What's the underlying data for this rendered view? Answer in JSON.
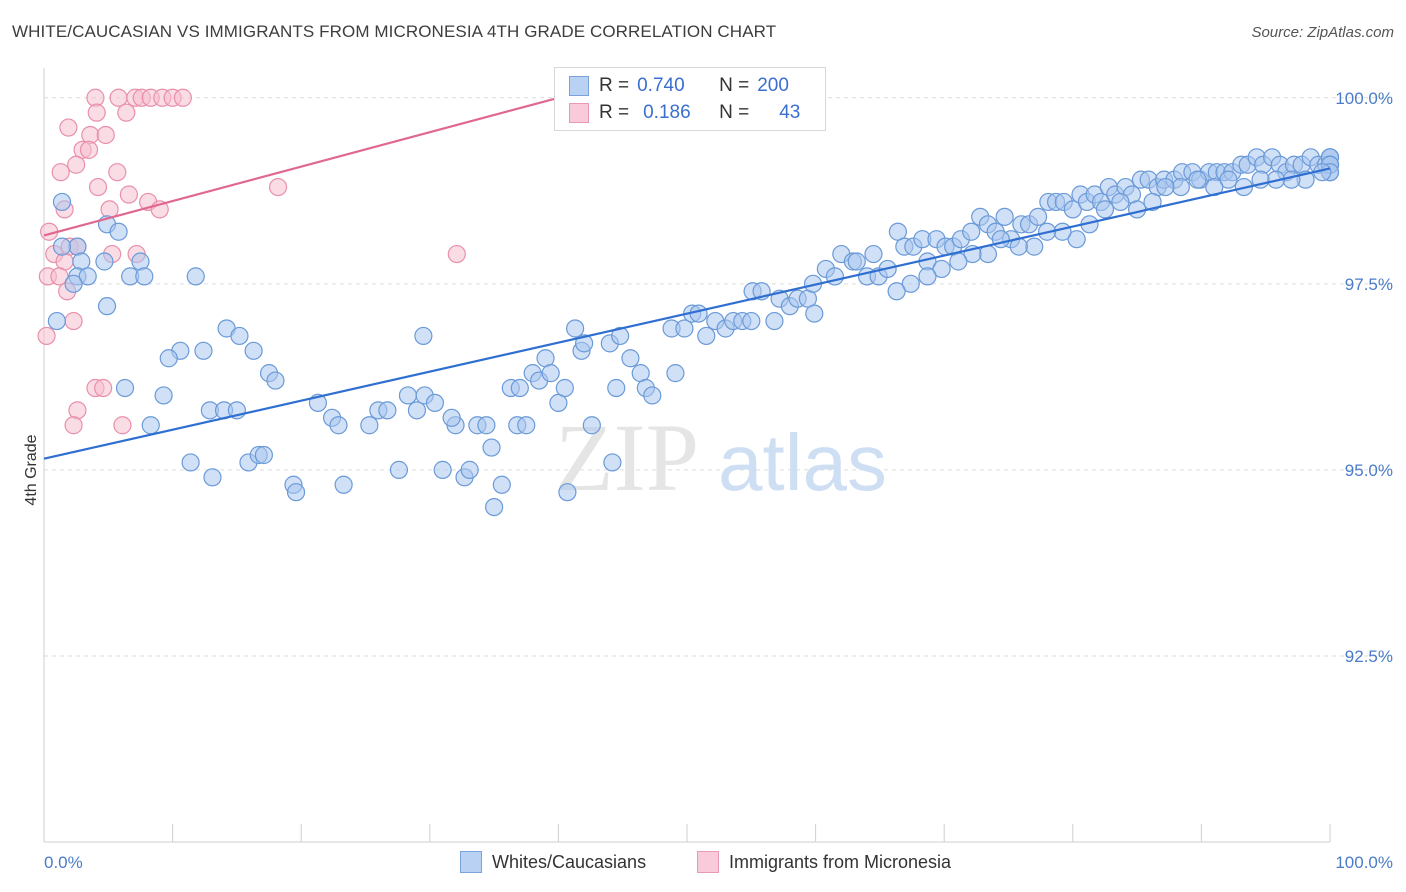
{
  "title": "WHITE/CAUCASIAN VS IMMIGRANTS FROM MICRONESIA 4TH GRADE CORRELATION CHART",
  "source": "Source: ZipAtlas.com",
  "watermark": {
    "zip": "ZIP",
    "atlas": "atlas"
  },
  "colors": {
    "blue": "#a9c7ef",
    "blue_stroke": "#6a9ad8",
    "blue_line": "#2f6fd1",
    "pink": "#f6bfd0",
    "pink_stroke": "#e98fab",
    "pink_line": "#e0678f",
    "grid": "#dcdcdc",
    "axis_text": "#4a7cc7"
  },
  "legend": {
    "rows": [
      {
        "r_label": "R =",
        "r_value": "0.740",
        "n_label": "N =",
        "n_value": "200"
      },
      {
        "r_label": "R =",
        "r_value": "0.186",
        "n_label": "N =",
        "n_value": "43"
      }
    ]
  },
  "bottom_legend": [
    "Whites/Caucasians",
    "Immigrants from Micronesia"
  ],
  "chart_data": {
    "type": "scatter",
    "xlabel": "",
    "ylabel": "4th Grade",
    "xlim": [
      0,
      100
    ],
    "ylim": [
      90.0,
      100.4
    ],
    "x_tick_labels": [
      "0.0%",
      "100.0%"
    ],
    "y_ticks": [
      92.5,
      95.0,
      97.5,
      100.0
    ],
    "y_tick_labels": [
      "92.5%",
      "95.0%",
      "97.5%",
      "100.0%"
    ],
    "grid": true,
    "series": [
      {
        "name": "Whites/Caucasians",
        "trend": {
          "x": [
            0,
            100
          ],
          "y": [
            95.15,
            99.05
          ]
        },
        "points": [
          [
            1.4,
            98.6
          ],
          [
            2.6,
            98.0
          ],
          [
            1.4,
            98.0
          ],
          [
            4.9,
            98.3
          ],
          [
            5.8,
            98.2
          ],
          [
            2.9,
            97.8
          ],
          [
            4.7,
            97.8
          ],
          [
            7.5,
            97.8
          ],
          [
            2.6,
            97.6
          ],
          [
            3.4,
            97.6
          ],
          [
            6.7,
            97.6
          ],
          [
            7.8,
            97.6
          ],
          [
            11.8,
            97.6
          ],
          [
            2.3,
            97.5
          ],
          [
            4.9,
            97.2
          ],
          [
            1.0,
            97.0
          ],
          [
            14.2,
            96.9
          ],
          [
            15.2,
            96.8
          ],
          [
            10.6,
            96.6
          ],
          [
            12.4,
            96.6
          ],
          [
            9.7,
            96.5
          ],
          [
            16.3,
            96.6
          ],
          [
            17.5,
            96.3
          ],
          [
            18.0,
            96.2
          ],
          [
            6.3,
            96.1
          ],
          [
            9.3,
            96.0
          ],
          [
            12.9,
            95.8
          ],
          [
            14.0,
            95.8
          ],
          [
            15.0,
            95.8
          ],
          [
            8.3,
            95.6
          ],
          [
            21.3,
            95.9
          ],
          [
            22.4,
            95.7
          ],
          [
            22.9,
            95.6
          ],
          [
            25.3,
            95.6
          ],
          [
            26.0,
            95.8
          ],
          [
            26.7,
            95.8
          ],
          [
            28.3,
            96.0
          ],
          [
            29.0,
            95.8
          ],
          [
            29.6,
            96.0
          ],
          [
            30.4,
            95.9
          ],
          [
            29.5,
            96.8
          ],
          [
            11.4,
            95.1
          ],
          [
            13.1,
            94.9
          ],
          [
            15.9,
            95.1
          ],
          [
            16.7,
            95.2
          ],
          [
            17.1,
            95.2
          ],
          [
            19.4,
            94.8
          ],
          [
            19.6,
            94.7
          ],
          [
            23.3,
            94.8
          ],
          [
            27.6,
            95.0
          ],
          [
            31.0,
            95.0
          ],
          [
            32.0,
            95.6
          ],
          [
            31.7,
            95.7
          ],
          [
            32.7,
            94.9
          ],
          [
            33.1,
            95.0
          ],
          [
            33.7,
            95.6
          ],
          [
            34.4,
            95.6
          ],
          [
            34.8,
            95.3
          ],
          [
            35.0,
            94.5
          ],
          [
            35.6,
            94.8
          ],
          [
            36.3,
            96.1
          ],
          [
            36.8,
            95.6
          ],
          [
            37.0,
            96.1
          ],
          [
            37.5,
            95.6
          ],
          [
            38.0,
            96.3
          ],
          [
            38.5,
            96.2
          ],
          [
            39.0,
            96.5
          ],
          [
            39.4,
            96.3
          ],
          [
            40.0,
            95.9
          ],
          [
            40.5,
            96.1
          ],
          [
            40.7,
            94.7
          ],
          [
            41.3,
            96.9
          ],
          [
            41.8,
            96.6
          ],
          [
            42.0,
            96.7
          ],
          [
            42.6,
            95.6
          ],
          [
            44.0,
            96.7
          ],
          [
            44.5,
            96.1
          ],
          [
            44.8,
            96.8
          ],
          [
            44.2,
            95.1
          ],
          [
            45.6,
            96.5
          ],
          [
            46.4,
            96.3
          ],
          [
            46.8,
            96.1
          ],
          [
            47.3,
            96.0
          ],
          [
            49.1,
            96.3
          ],
          [
            48.8,
            96.9
          ],
          [
            49.8,
            96.9
          ],
          [
            50.4,
            97.1
          ],
          [
            50.9,
            97.1
          ],
          [
            51.5,
            96.8
          ],
          [
            52.2,
            97.0
          ],
          [
            53.0,
            96.9
          ],
          [
            53.6,
            97.0
          ],
          [
            54.3,
            97.0
          ],
          [
            55.0,
            97.0
          ],
          [
            55.1,
            97.4
          ],
          [
            55.8,
            97.4
          ],
          [
            56.8,
            97.0
          ],
          [
            57.2,
            97.3
          ],
          [
            58.0,
            97.2
          ],
          [
            58.6,
            97.3
          ],
          [
            59.4,
            97.3
          ],
          [
            59.8,
            97.5
          ],
          [
            59.9,
            97.1
          ],
          [
            60.8,
            97.7
          ],
          [
            61.5,
            97.6
          ],
          [
            62.0,
            97.9
          ],
          [
            62.9,
            97.8
          ],
          [
            63.2,
            97.8
          ],
          [
            64.0,
            97.6
          ],
          [
            64.5,
            97.9
          ],
          [
            64.9,
            97.6
          ],
          [
            65.6,
            97.7
          ],
          [
            66.4,
            98.2
          ],
          [
            66.9,
            98.0
          ],
          [
            67.6,
            98.0
          ],
          [
            68.3,
            98.1
          ],
          [
            68.7,
            97.8
          ],
          [
            69.4,
            98.1
          ],
          [
            70.1,
            98.0
          ],
          [
            70.7,
            98.0
          ],
          [
            71.3,
            98.1
          ],
          [
            72.1,
            98.2
          ],
          [
            72.8,
            98.4
          ],
          [
            73.4,
            98.3
          ],
          [
            74.0,
            98.2
          ],
          [
            74.7,
            98.4
          ],
          [
            75.2,
            98.1
          ],
          [
            76.0,
            98.3
          ],
          [
            76.6,
            98.3
          ],
          [
            77.3,
            98.4
          ],
          [
            78.1,
            98.6
          ],
          [
            78.7,
            98.6
          ],
          [
            79.3,
            98.6
          ],
          [
            80.0,
            98.5
          ],
          [
            80.6,
            98.7
          ],
          [
            81.1,
            98.6
          ],
          [
            81.7,
            98.7
          ],
          [
            82.2,
            98.6
          ],
          [
            82.8,
            98.8
          ],
          [
            83.3,
            98.7
          ],
          [
            84.1,
            98.8
          ],
          [
            84.6,
            98.7
          ],
          [
            85.3,
            98.9
          ],
          [
            85.9,
            98.9
          ],
          [
            86.6,
            98.8
          ],
          [
            87.1,
            98.9
          ],
          [
            87.9,
            98.9
          ],
          [
            88.5,
            99.0
          ],
          [
            89.3,
            99.0
          ],
          [
            89.9,
            98.9
          ],
          [
            90.6,
            99.0
          ],
          [
            91.2,
            99.0
          ],
          [
            91.8,
            99.0
          ],
          [
            92.4,
            99.0
          ],
          [
            93.1,
            99.1
          ],
          [
            93.6,
            99.1
          ],
          [
            94.3,
            99.2
          ],
          [
            94.8,
            99.1
          ],
          [
            95.5,
            99.2
          ],
          [
            96.1,
            99.1
          ],
          [
            96.6,
            99.0
          ],
          [
            97.2,
            99.1
          ],
          [
            97.8,
            99.1
          ],
          [
            98.5,
            99.2
          ],
          [
            99.1,
            99.1
          ],
          [
            99.7,
            99.1
          ],
          [
            100.0,
            99.1
          ],
          [
            100.4,
            99.2
          ],
          [
            100.9,
            99.1
          ],
          [
            101.2,
            99.2
          ],
          [
            101.5,
            99.2
          ],
          [
            101.8,
            99.1
          ],
          [
            102.0,
            99.0
          ],
          [
            102.3,
            99.1
          ],
          [
            101.3,
            99.1
          ],
          [
            100.7,
            99.0
          ],
          [
            99.4,
            99.0
          ],
          [
            98.1,
            98.9
          ],
          [
            97.0,
            98.9
          ],
          [
            95.8,
            98.9
          ],
          [
            94.6,
            98.9
          ],
          [
            93.3,
            98.8
          ],
          [
            92.1,
            98.9
          ],
          [
            91.0,
            98.8
          ],
          [
            89.7,
            98.9
          ],
          [
            88.4,
            98.8
          ],
          [
            87.2,
            98.8
          ],
          [
            86.2,
            98.6
          ],
          [
            85.0,
            98.5
          ],
          [
            83.7,
            98.6
          ],
          [
            82.5,
            98.5
          ],
          [
            81.3,
            98.3
          ],
          [
            80.3,
            98.1
          ],
          [
            79.2,
            98.2
          ],
          [
            78.0,
            98.2
          ],
          [
            77.0,
            98.0
          ],
          [
            75.8,
            98.0
          ],
          [
            74.4,
            98.1
          ],
          [
            73.4,
            97.9
          ],
          [
            72.2,
            97.9
          ],
          [
            71.1,
            97.8
          ],
          [
            69.8,
            97.7
          ],
          [
            68.7,
            97.6
          ],
          [
            67.4,
            97.5
          ],
          [
            66.3,
            97.4
          ]
        ]
      },
      {
        "name": "Immigrants from Micronesia",
        "trend": {
          "x": [
            0,
            40
          ],
          "y": [
            98.15,
            100.0
          ]
        },
        "points": [
          [
            4.0,
            100.0
          ],
          [
            5.8,
            100.0
          ],
          [
            7.1,
            100.0
          ],
          [
            7.6,
            100.0
          ],
          [
            8.3,
            100.0
          ],
          [
            9.2,
            100.0
          ],
          [
            10.0,
            100.0
          ],
          [
            10.8,
            100.0
          ],
          [
            4.1,
            99.8
          ],
          [
            6.4,
            99.8
          ],
          [
            1.9,
            99.6
          ],
          [
            3.6,
            99.5
          ],
          [
            4.8,
            99.5
          ],
          [
            3.0,
            99.3
          ],
          [
            3.5,
            99.3
          ],
          [
            2.5,
            99.1
          ],
          [
            5.7,
            99.0
          ],
          [
            1.3,
            99.0
          ],
          [
            4.2,
            98.8
          ],
          [
            6.6,
            98.7
          ],
          [
            8.1,
            98.6
          ],
          [
            9.0,
            98.5
          ],
          [
            1.6,
            98.5
          ],
          [
            5.1,
            98.5
          ],
          [
            0.4,
            98.2
          ],
          [
            2.0,
            98.0
          ],
          [
            2.6,
            98.0
          ],
          [
            0.8,
            97.9
          ],
          [
            5.3,
            97.9
          ],
          [
            7.2,
            97.9
          ],
          [
            1.6,
            97.8
          ],
          [
            0.3,
            97.6
          ],
          [
            1.2,
            97.6
          ],
          [
            1.8,
            97.4
          ],
          [
            2.3,
            97.0
          ],
          [
            0.2,
            96.8
          ],
          [
            4.0,
            96.1
          ],
          [
            4.6,
            96.1
          ],
          [
            2.6,
            95.8
          ],
          [
            6.1,
            95.6
          ],
          [
            2.3,
            95.6
          ],
          [
            18.2,
            98.8
          ],
          [
            32.1,
            97.9
          ]
        ]
      }
    ]
  }
}
